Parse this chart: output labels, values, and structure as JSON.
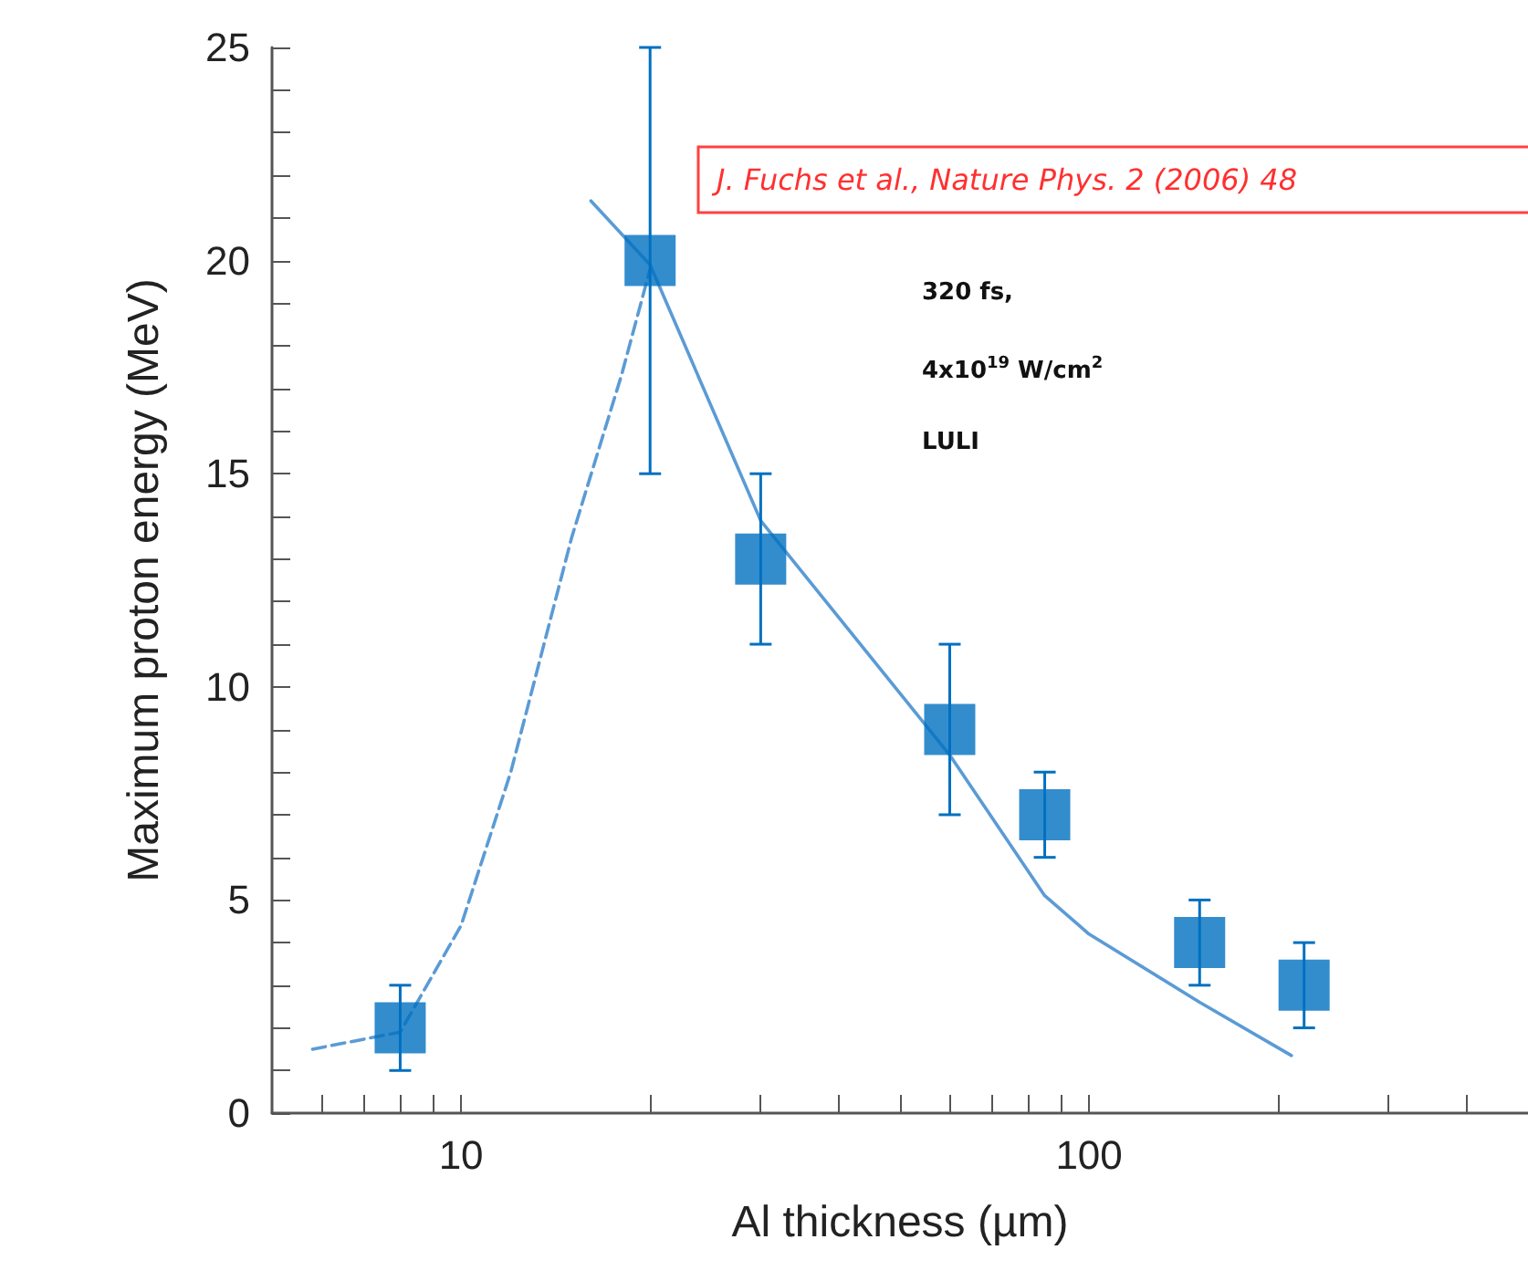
{
  "chart_data": {
    "type": "scatter",
    "xlabel": "Al thickness (µm)",
    "ylabel": "Maximum proton energy (MeV)",
    "log": "x",
    "marker": "square",
    "xlim": [
      5,
      500
    ],
    "xticks": [
      {
        "value": 6,
        "label": null
      },
      {
        "value": 7,
        "label": null
      },
      {
        "value": 8,
        "label": null
      },
      {
        "value": 9,
        "label": null
      },
      10,
      {
        "value": 20,
        "label": null
      },
      {
        "value": 30,
        "label": null
      },
      {
        "value": 40,
        "label": null
      },
      {
        "value": 50,
        "label": null
      },
      {
        "value": 60,
        "label": null
      },
      {
        "value": 70,
        "label": null
      },
      {
        "value": 80,
        "label": null
      },
      {
        "value": 90,
        "label": null
      },
      100,
      {
        "value": 200,
        "label": null
      },
      {
        "value": 300,
        "label": null
      },
      {
        "value": 400,
        "label": null
      }
    ],
    "ylim": [
      0,
      25
    ],
    "yticks": [
      0,
      {
        "value": 1,
        "label": null
      },
      {
        "value": 2,
        "label": null
      },
      {
        "value": 3,
        "label": null
      },
      {
        "value": 4,
        "label": null
      },
      5,
      {
        "value": 6,
        "label": null
      },
      {
        "value": 7,
        "label": null
      },
      {
        "value": 8,
        "label": null
      },
      {
        "value": 9,
        "label": null
      },
      10,
      {
        "value": 11,
        "label": null
      },
      {
        "value": 12,
        "label": null
      },
      {
        "value": 13,
        "label": null
      },
      {
        "value": 14,
        "label": null
      },
      15,
      {
        "value": 16,
        "label": null
      },
      {
        "value": 17,
        "label": null
      },
      {
        "value": 18,
        "label": null
      },
      {
        "value": 19,
        "label": null
      },
      20,
      {
        "value": 21,
        "label": null
      },
      {
        "value": 22,
        "label": null
      },
      {
        "value": 23,
        "label": null
      },
      {
        "value": 24,
        "label": null
      },
      25
    ],
    "series": [
      {
        "type": "line",
        "color": "#5b9bd5",
        "line_style": "dashed",
        "marker": "none",
        "x": [
          5.8,
          8,
          10,
          12,
          15,
          18,
          20
        ],
        "values": [
          1.5,
          1.9,
          4.4,
          8,
          13.5,
          17.3,
          19.8
        ]
      },
      {
        "type": "line",
        "color": "#5b9bd5",
        "line_style": "solid",
        "marker": "none",
        "x": [
          16.1,
          20,
          30,
          60,
          85,
          100,
          150,
          210
        ],
        "values": [
          21.4,
          19.9,
          13.9,
          8.4,
          5.1,
          4.2,
          2.6,
          1.35
        ]
      },
      {
        "color": "#0070c0",
        "x": [
          8,
          20,
          30,
          60,
          85,
          150,
          220
        ],
        "values": [
          2,
          20,
          13,
          9,
          7,
          4,
          3
        ],
        "errors": [
          [
            1,
            3
          ],
          [
            15,
            25
          ],
          [
            11,
            15
          ],
          [
            7,
            11
          ],
          [
            6,
            8
          ],
          [
            3,
            5
          ],
          [
            2,
            4
          ]
        ]
      }
    ],
    "annotations": [
      "J. Fuchs et al., Nature Phys. 2 (2006) 48",
      "320 fs,",
      "4x10$^{19}$ W/cm$^{2}$",
      "LULI"
    ]
  }
}
